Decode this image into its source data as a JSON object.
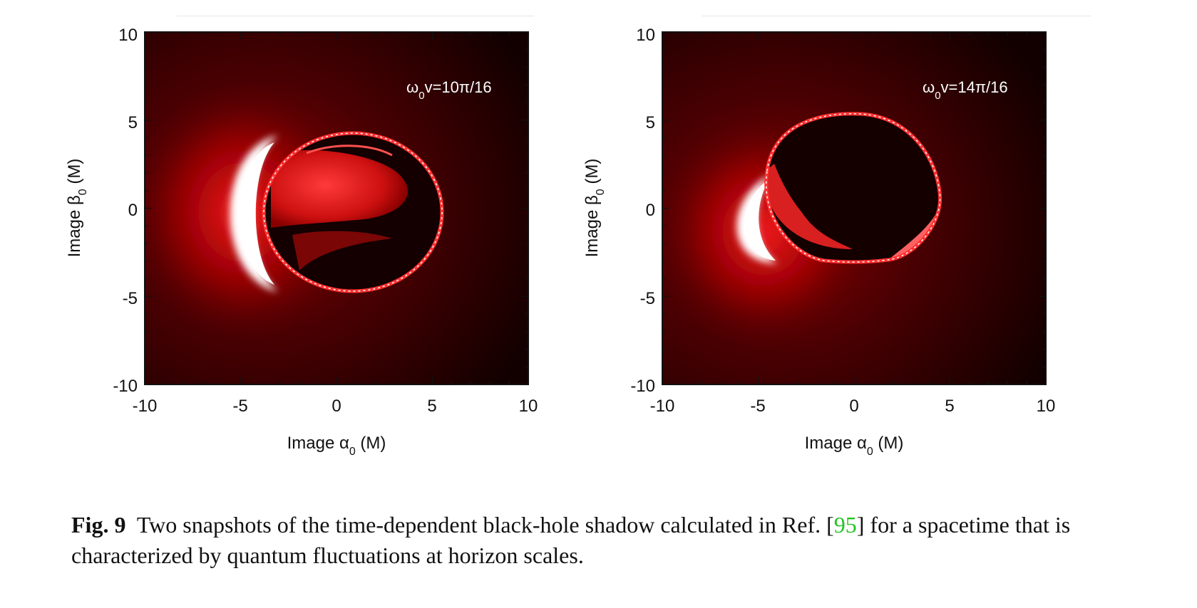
{
  "figure": {
    "label": "Fig. 9",
    "caption_before_ref": "Two snapshots of the time-dependent black-hole shadow calculated in Ref. [",
    "ref_number": "95",
    "caption_after_ref": "] for a spacetime that is characterized by quantum fluctuations at horizon scales.",
    "ref_color": "#22c422"
  },
  "panels": [
    {
      "annotation_base": "ω",
      "annotation_sub": "0",
      "annotation_rest": "v=10π/16",
      "xlabel_base": "Image α",
      "xlabel_sub": "0",
      "xlabel_rest": " (M)",
      "ylabel_base": "Image β",
      "ylabel_sub": "0",
      "ylabel_rest": " (M)",
      "xticks": [
        "-10",
        "-5",
        "0",
        "5",
        "10"
      ],
      "yticks": [
        "10",
        "5",
        "0",
        "-5",
        "-10"
      ]
    },
    {
      "annotation_base": "ω",
      "annotation_sub": "0",
      "annotation_rest": "v=14π/16",
      "xlabel_base": "Image α",
      "xlabel_sub": "0",
      "xlabel_rest": " (M)",
      "ylabel_base": "Image β",
      "ylabel_sub": "0",
      "ylabel_rest": " (M)",
      "xticks": [
        "-10",
        "-5",
        "0",
        "5",
        "10"
      ],
      "yticks": [
        "10",
        "5",
        "0",
        "-5",
        "-10"
      ]
    }
  ],
  "chart_data": [
    {
      "type": "heatmap",
      "annotation": "ω0v=10π/16",
      "xlabel": "Image α0 (M)",
      "ylabel": "Image β0 (M)",
      "xlim": [
        -10,
        10
      ],
      "ylim": [
        -10,
        10
      ],
      "colormap": [
        "#000000",
        "#8b0000",
        "#ff0000",
        "#ffffff"
      ],
      "shadow_ring": {
        "center": [
          -0.3,
          -0.2
        ],
        "radius_x": 5.2,
        "radius_y": 4.6
      },
      "bright_crescent_side": "left"
    },
    {
      "type": "heatmap",
      "annotation": "ω0v=14π/16",
      "xlabel": "Image α0 (M)",
      "ylabel": "Image β0 (M)",
      "xlim": [
        -10,
        10
      ],
      "ylim": [
        -10,
        10
      ],
      "colormap": [
        "#000000",
        "#8b0000",
        "#ff0000",
        "#ffffff"
      ],
      "shadow_ring": {
        "center": [
          0.2,
          1.4
        ],
        "radius_x": 4.7,
        "radius_y": 4.2
      },
      "bright_crescent_side": "left"
    }
  ]
}
